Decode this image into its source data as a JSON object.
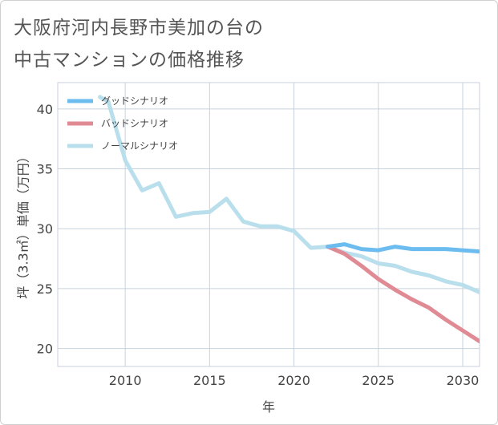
{
  "title": {
    "line1": "大阪府河内長野市美加の台の",
    "line2": "中古マンションの価格推移"
  },
  "chart_data": {
    "type": "line",
    "xlabel": "年",
    "ylabel": "坪（3.3㎡）単価（万円）",
    "xlim": [
      2006,
      2031
    ],
    "ylim": [
      18.5,
      42.2
    ],
    "xticks": [
      2010,
      2015,
      2020,
      2025,
      2030
    ],
    "yticks": [
      20,
      25,
      30,
      35,
      40
    ],
    "grid": true,
    "legend_position": "top-left",
    "series": [
      {
        "name": "グッドシナリオ",
        "color": "#6cbcf0",
        "x": [
          2022,
          2023,
          2024,
          2025,
          2026,
          2027,
          2028,
          2029,
          2030,
          2031
        ],
        "values": [
          28.5,
          28.7,
          28.3,
          28.2,
          28.5,
          28.3,
          28.3,
          28.3,
          28.2,
          28.1
        ]
      },
      {
        "name": "バッドシナリオ",
        "color": "#e08a94",
        "x": [
          2022,
          2023,
          2024,
          2025,
          2026,
          2027,
          2028,
          2029,
          2030,
          2031
        ],
        "values": [
          28.5,
          27.9,
          26.9,
          25.8,
          24.9,
          24.1,
          23.4,
          22.4,
          21.5,
          20.6
        ]
      },
      {
        "name": "ノーマルシナリオ",
        "color": "#b9deec",
        "x": [
          2008.5,
          2009,
          2010,
          2011,
          2012,
          2013,
          2014,
          2015,
          2016,
          2017,
          2018,
          2019,
          2020,
          2021,
          2022,
          2023,
          2024,
          2025,
          2026,
          2027,
          2028,
          2029,
          2030,
          2031
        ],
        "values": [
          41.0,
          40.6,
          35.7,
          33.2,
          33.8,
          31.0,
          31.3,
          31.4,
          32.5,
          30.6,
          30.2,
          30.2,
          29.8,
          28.4,
          28.5,
          28.0,
          27.7,
          27.1,
          26.9,
          26.4,
          26.1,
          25.6,
          25.3,
          24.7
        ]
      }
    ]
  }
}
